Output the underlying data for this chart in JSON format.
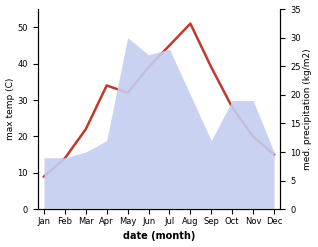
{
  "months": [
    "Jan",
    "Feb",
    "Mar",
    "Apr",
    "May",
    "Jun",
    "Jul",
    "Aug",
    "Sep",
    "Oct",
    "Nov",
    "Dec"
  ],
  "temperature": [
    9,
    14,
    22,
    34,
    32,
    39,
    45,
    51,
    39,
    28,
    20,
    15
  ],
  "precipitation": [
    9,
    9,
    10,
    12,
    30,
    27,
    28,
    20,
    12,
    19,
    19,
    10
  ],
  "temp_color": "#c0392b",
  "precip_fill_color": "#c5cdf0",
  "temp_ylim": [
    0,
    55
  ],
  "precip_ylim": [
    0,
    35
  ],
  "temp_yticks": [
    0,
    10,
    20,
    30,
    40,
    50
  ],
  "precip_yticks": [
    0,
    5,
    10,
    15,
    20,
    25,
    30,
    35
  ],
  "ylabel_left": "max temp (C)",
  "ylabel_right": "med. precipitation (kg/m2)",
  "xlabel": "date (month)",
  "background_color": "#ffffff"
}
